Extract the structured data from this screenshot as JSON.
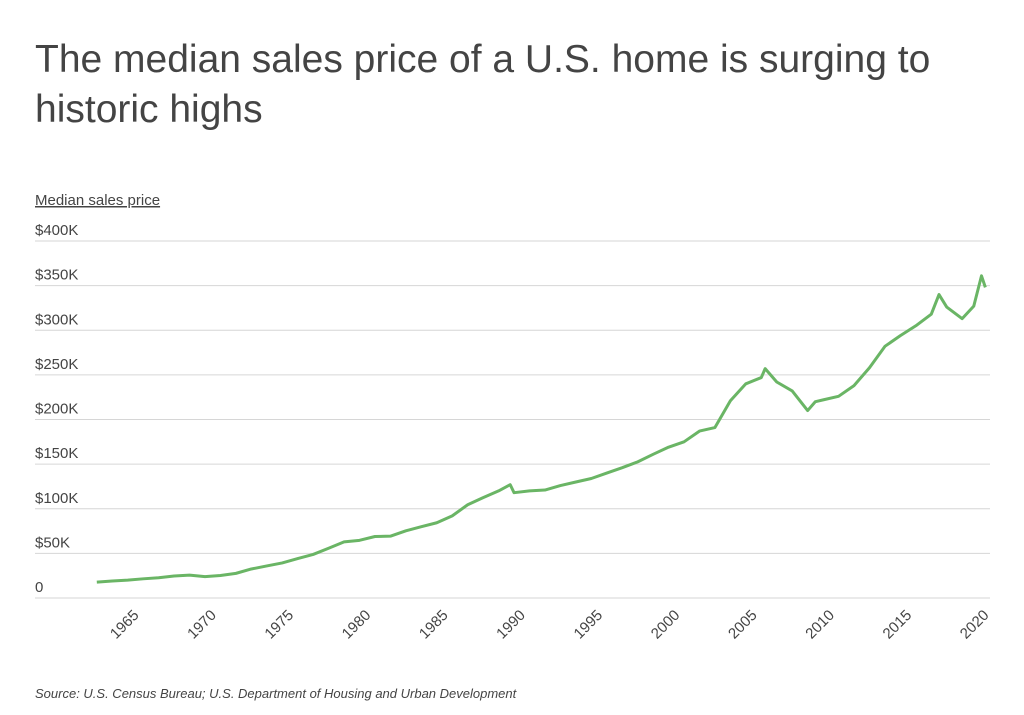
{
  "chart_data": {
    "type": "line",
    "title": "The median sales price of a U.S. home is surging to historic highs",
    "y_axis_label": "Median sales price",
    "source": "Source:  U.S. Census Bureau; U.S. Department of Housing and Urban Development",
    "x": [
      1963,
      1964,
      1965,
      1966,
      1967,
      1968,
      1969,
      1970,
      1971,
      1972,
      1973,
      1974,
      1975,
      1976,
      1977,
      1978,
      1979,
      1980,
      1981,
      1982,
      1983,
      1984,
      1985,
      1986,
      1987,
      1988,
      1989,
      1989.75,
      1990,
      1991,
      1992,
      1993,
      1994,
      1995,
      1996,
      1997,
      1998,
      1999,
      2000,
      2001,
      2002,
      2003,
      2004,
      2005,
      2006,
      2006.25,
      2007,
      2008,
      2009,
      2009.5,
      2010,
      2011,
      2012,
      2013,
      2014,
      2015,
      2016,
      2017,
      2017.5,
      2018,
      2019,
      2019.75,
      2020.25,
      2020.5
    ],
    "series": [
      {
        "name": "Median sales price",
        "color": "#6ab565",
        "values": [
          17800,
          19000,
          20000,
          21500,
          22700,
          24700,
          25600,
          23900,
          25200,
          27600,
          32500,
          35900,
          39300,
          44200,
          48800,
          55700,
          62900,
          64600,
          68900,
          69300,
          75300,
          79900,
          84300,
          92000,
          104500,
          112500,
          120000,
          127000,
          118000,
          120000,
          121000,
          126000,
          130000,
          133900,
          140000,
          146000,
          152500,
          161000,
          169000,
          175000,
          187000,
          191000,
          221000,
          240000,
          247000,
          257000,
          242000,
          232000,
          210000,
          220000,
          222000,
          226000,
          238000,
          258000,
          282000,
          294000,
          305000,
          318000,
          340000,
          326000,
          313000,
          327000,
          361000,
          348000
        ]
      }
    ],
    "xlim": [
      1959,
      2020.8
    ],
    "xticks": [
      1965,
      1970,
      1975,
      1980,
      1985,
      1990,
      1995,
      2000,
      2005,
      2010,
      2015,
      2020
    ],
    "ylim": [
      0,
      400000
    ],
    "yticks": [
      0,
      {
        "value": 50000,
        "label": "$50K"
      },
      {
        "value": 100000,
        "label": "$100K"
      },
      {
        "value": 150000,
        "label": "$150K"
      },
      {
        "value": 200000,
        "label": "$200K"
      },
      {
        "value": 250000,
        "label": "$250K"
      },
      {
        "value": 300000,
        "label": "$300K"
      },
      {
        "value": 350000,
        "label": "$350K"
      },
      {
        "value": 400000,
        "label": "$400K"
      }
    ],
    "grid": true
  }
}
